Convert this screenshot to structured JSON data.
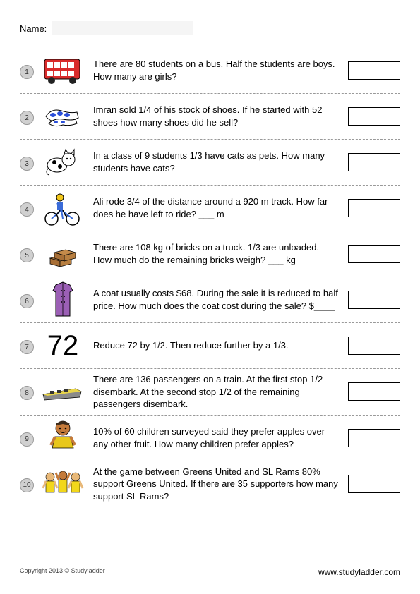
{
  "name_label": "Name:",
  "questions": [
    {
      "num": "1",
      "text": "There are 80 students on a bus. Half the students are boys. How many are girls?",
      "icon": "bus"
    },
    {
      "num": "2",
      "text": "Imran sold 1/4 of his stock of shoes. If he started with 52 shoes how many shoes did he sell?",
      "icon": "shoes"
    },
    {
      "num": "3",
      "text": "In a class of 9 students 1/3 have cats as pets. How many students have cats?",
      "icon": "cat"
    },
    {
      "num": "4",
      "text": "Ali rode 3/4 of the distance around a 920 m track. How far does he have left to ride? ___ m",
      "icon": "bicycle"
    },
    {
      "num": "5",
      "text": "There are 108 kg of bricks on a truck. 1/3 are unloaded. How much do the remaining bricks weigh? ___ kg",
      "icon": "bricks"
    },
    {
      "num": "6",
      "text": "A coat usually costs $68. During the sale it is reduced to half price. How much does the coat cost during the sale? $____",
      "icon": "coat"
    },
    {
      "num": "7",
      "text": "Reduce 72 by 1/2. Then reduce further by a 1/3.",
      "icon": "72"
    },
    {
      "num": "8",
      "text": "There are 136 passengers on a train. At the first stop 1/2 disembark. At the second stop 1/2 of the remaining passengers disembark.",
      "icon": "train"
    },
    {
      "num": "9",
      "text": "10% of 60 children surveyed said they prefer apples over any other fruit. How many children prefer apples?",
      "icon": "child"
    },
    {
      "num": "10",
      "text": "At the game between Greens United and SL Rams 80% support Greens United. If there are 35 supporters how many support SL Rams?",
      "icon": "crowd"
    }
  ],
  "icon_text_72": "72",
  "footer_copyright": "Copyright 2013 © Studyladder",
  "footer_url": "www.studyladder.com",
  "colors": {
    "bus_red": "#d92b2b",
    "shoe_blue": "#2b4fd9",
    "bike_yellow": "#f2c71b",
    "bike_blue": "#3a6bd8",
    "brick_brown": "#c48a4a",
    "coat_purple": "#9b5fb5",
    "train_yellow": "#e8d44a",
    "train_gray": "#8a8a8a",
    "child_skin": "#c47a3a",
    "child_shirt": "#e8c71b",
    "crowd_yellow": "#f2d71b"
  }
}
